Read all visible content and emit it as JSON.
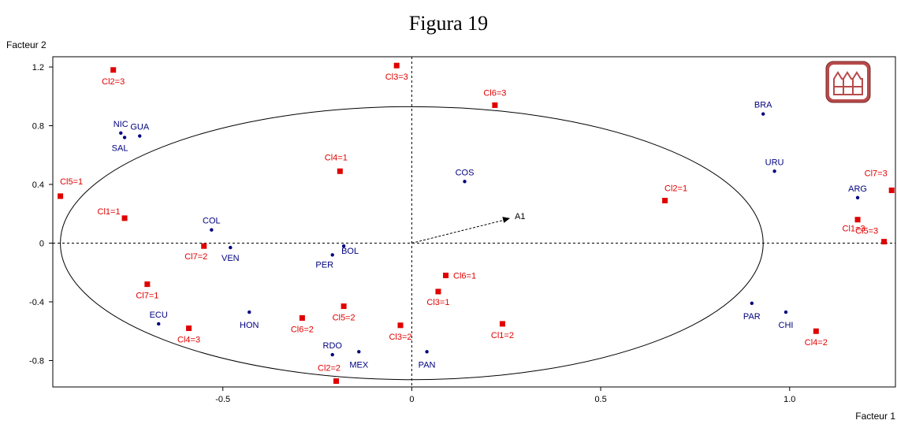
{
  "chart_data": {
    "type": "scatter",
    "title": "Figura 19",
    "xlabel": "Facteur 1",
    "ylabel": "Facteur 2",
    "xlim": [
      -0.95,
      1.28
    ],
    "ylim": [
      -0.98,
      1.27
    ],
    "xticks": [
      -0.5,
      0,
      0.5,
      1.0
    ],
    "xtick_labels": [
      "-0.5",
      "0",
      "0.5",
      "1.0"
    ],
    "yticks": [
      -0.8,
      -0.4,
      0,
      0.4,
      0.8,
      1.2
    ],
    "ytick_labels": [
      "-0.8",
      "-0.4",
      "0",
      "0.4",
      "0.8",
      "1.2"
    ],
    "grid": false,
    "colors": {
      "countries": "#000080",
      "categories": "#e00000",
      "axes": "#000000"
    },
    "ellipse": {
      "cx": 0.93,
      "cy": 0.93,
      "comment_free": true
    },
    "vector": {
      "label": "A1",
      "x": 0.26,
      "y": 0.17
    },
    "countries": [
      {
        "label": "NIC",
        "x": -0.77,
        "y": 0.75
      },
      {
        "label": "SAL",
        "x": -0.76,
        "y": 0.72
      },
      {
        "label": "GUA",
        "x": -0.72,
        "y": 0.73
      },
      {
        "label": "COL",
        "x": -0.53,
        "y": 0.09
      },
      {
        "label": "VEN",
        "x": -0.48,
        "y": -0.03
      },
      {
        "label": "PER",
        "x": -0.21,
        "y": -0.08
      },
      {
        "label": "BOL",
        "x": -0.18,
        "y": -0.02
      },
      {
        "label": "ECU",
        "x": -0.67,
        "y": -0.55
      },
      {
        "label": "HON",
        "x": -0.43,
        "y": -0.47
      },
      {
        "label": "RDO",
        "x": -0.21,
        "y": -0.76
      },
      {
        "label": "MEX",
        "x": -0.14,
        "y": -0.74
      },
      {
        "label": "PAN",
        "x": 0.04,
        "y": -0.74
      },
      {
        "label": "COS",
        "x": 0.14,
        "y": 0.42
      },
      {
        "label": "BRA",
        "x": 0.93,
        "y": 0.88
      },
      {
        "label": "URU",
        "x": 0.96,
        "y": 0.49
      },
      {
        "label": "ARG",
        "x": 1.18,
        "y": 0.31
      },
      {
        "label": "PAR",
        "x": 0.9,
        "y": -0.41
      },
      {
        "label": "CHI",
        "x": 0.99,
        "y": -0.47
      }
    ],
    "categories": [
      {
        "label": "Cl2=3",
        "x": -0.79,
        "y": 1.18
      },
      {
        "label": "Cl3=3",
        "x": -0.04,
        "y": 1.21
      },
      {
        "label": "Cl6=3",
        "x": 0.22,
        "y": 0.94
      },
      {
        "label": "Cl4=1",
        "x": -0.19,
        "y": 0.49
      },
      {
        "label": "Cl5=1",
        "x": -0.93,
        "y": 0.32
      },
      {
        "label": "Cl1=1",
        "x": -0.76,
        "y": 0.17
      },
      {
        "label": "Cl7=2",
        "x": -0.55,
        "y": -0.02
      },
      {
        "label": "Cl2=1",
        "x": 0.67,
        "y": 0.29
      },
      {
        "label": "Cl7=3",
        "x": 1.27,
        "y": 0.36
      },
      {
        "label": "Cl1=3",
        "x": 1.18,
        "y": 0.16
      },
      {
        "label": "Cl5=3",
        "x": 1.25,
        "y": 0.01
      },
      {
        "label": "Cl6=1",
        "x": 0.09,
        "y": -0.22
      },
      {
        "label": "Cl3=1",
        "x": 0.07,
        "y": -0.33
      },
      {
        "label": "Cl7=1",
        "x": -0.7,
        "y": -0.28
      },
      {
        "label": "Cl5=2",
        "x": -0.18,
        "y": -0.43
      },
      {
        "label": "Cl6=2",
        "x": -0.29,
        "y": -0.51
      },
      {
        "label": "Cl4=3",
        "x": -0.59,
        "y": -0.58
      },
      {
        "label": "Cl3=2",
        "x": -0.03,
        "y": -0.56
      },
      {
        "label": "Cl1=2",
        "x": 0.24,
        "y": -0.55
      },
      {
        "label": "Cl4=2",
        "x": 1.07,
        "y": -0.6
      },
      {
        "label": "Cl2=2",
        "x": -0.2,
        "y": -0.94
      }
    ]
  }
}
